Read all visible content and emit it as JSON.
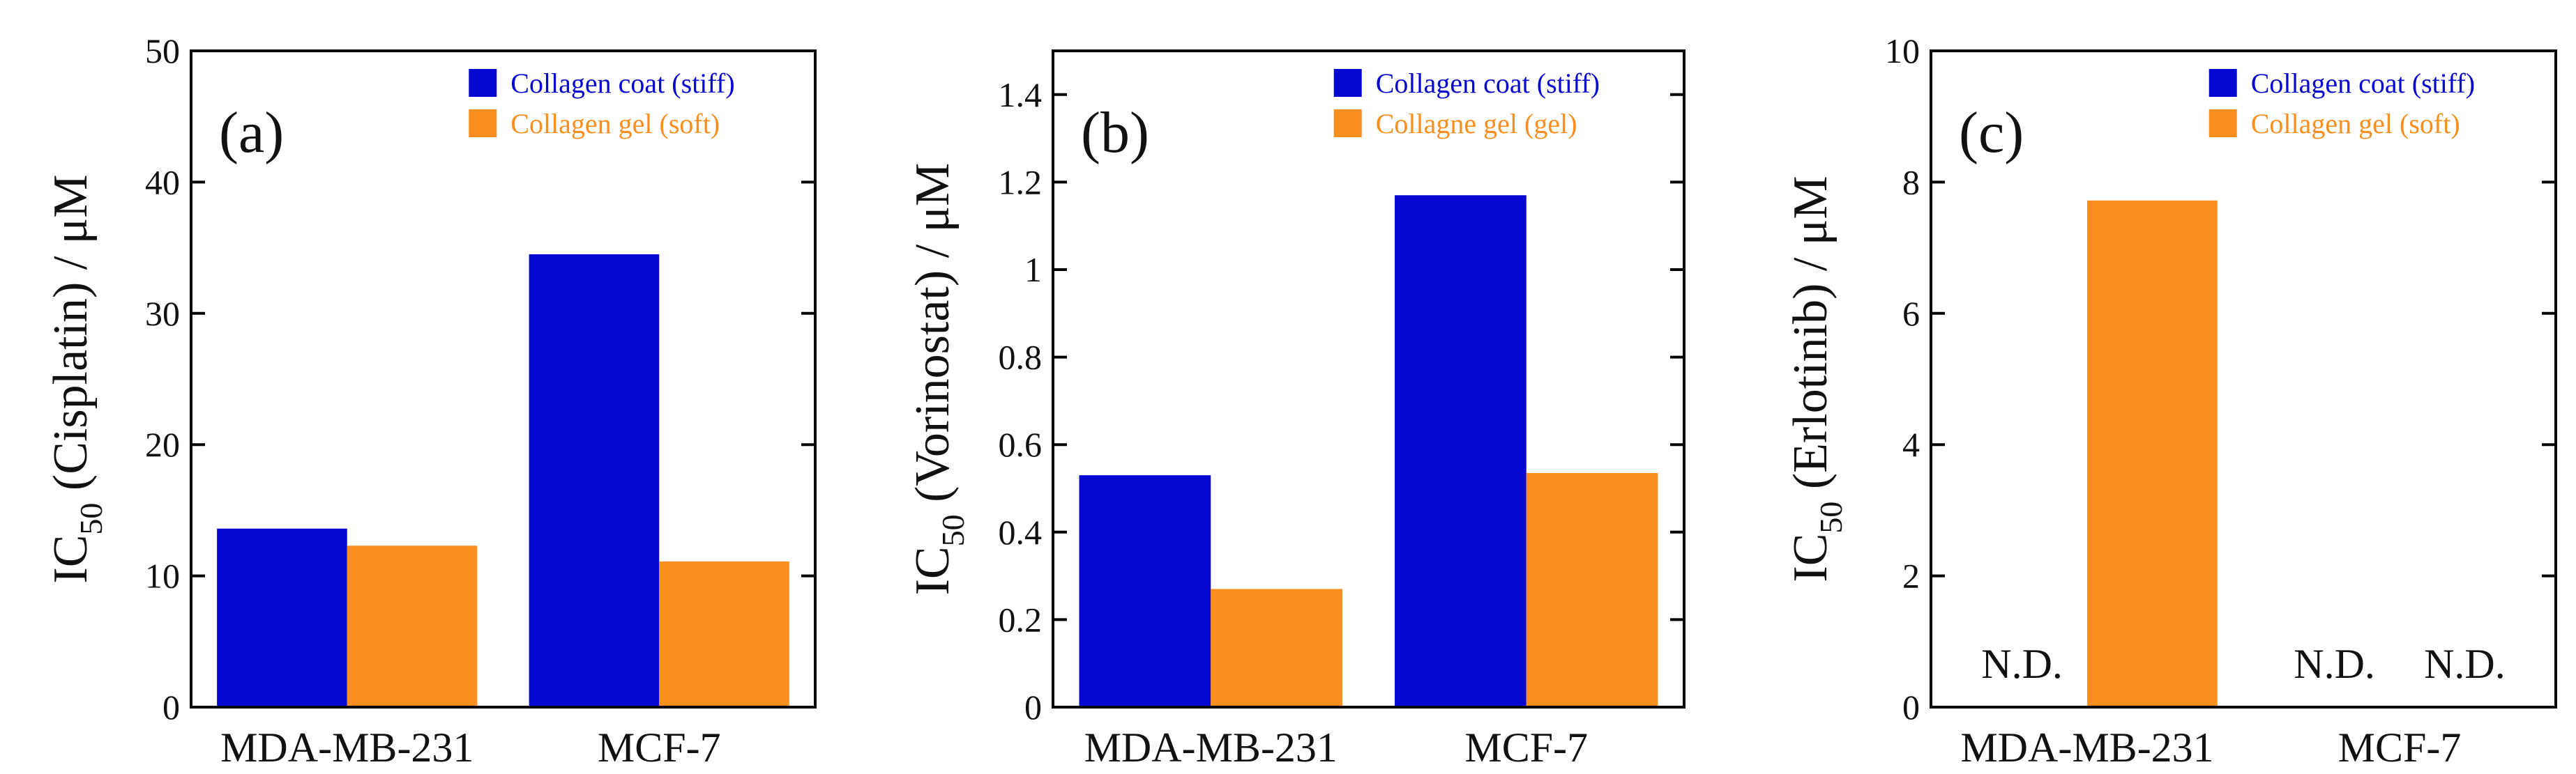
{
  "colors": {
    "stiff": "#0707D2",
    "soft": "#FA8E1E",
    "axis": "#000000"
  },
  "chart_data": [
    {
      "type": "bar",
      "panel_label": "(a)",
      "ylabel_parts": {
        "main": "IC",
        "sub": "50",
        "rest": " (Cisplatin) / μM"
      },
      "ylim": [
        0,
        50
      ],
      "yticks": [
        0,
        10,
        20,
        30,
        40,
        50
      ],
      "ytick_labels": [
        "0",
        "10",
        "20",
        "30",
        "40",
        "50"
      ],
      "categories": [
        "MDA-MB-231",
        "MCF-7"
      ],
      "series": [
        {
          "name": "Collagen coat (stiff)",
          "color": "#0707D2",
          "values": [
            13.6,
            34.5
          ],
          "labels": [
            null,
            null
          ]
        },
        {
          "name": "Collagen gel (soft)",
          "color": "#FA8E1E",
          "values": [
            12.3,
            11.1
          ],
          "labels": [
            null,
            null
          ]
        }
      ],
      "legend_position": "top-right"
    },
    {
      "type": "bar",
      "panel_label": "(b)",
      "ylabel_parts": {
        "main": "IC",
        "sub": "50",
        "rest": " (Vorinostat) / μM"
      },
      "ylim": [
        0,
        1.5
      ],
      "yticks": [
        0,
        0.2,
        0.4,
        0.6,
        0.8,
        1.0,
        1.2,
        1.4
      ],
      "ytick_labels": [
        "0",
        "0.2",
        "0.4",
        "0.6",
        "0.8",
        "1",
        "1.2",
        "1.4"
      ],
      "categories": [
        "MDA-MB-231",
        "MCF-7"
      ],
      "series": [
        {
          "name": "Collagen coat (stiff)",
          "color": "#0707D2",
          "values": [
            0.53,
            1.17
          ],
          "labels": [
            null,
            null
          ]
        },
        {
          "name": "Collagne gel (gel)",
          "color": "#FA8E1E",
          "values": [
            0.27,
            0.535
          ],
          "labels": [
            null,
            null
          ]
        }
      ],
      "legend_position": "top-right"
    },
    {
      "type": "bar",
      "panel_label": "(c)",
      "ylabel_parts": {
        "main": "IC",
        "sub": "50",
        "rest": " (Erlotinib) / μM"
      },
      "ylim": [
        0,
        10
      ],
      "yticks": [
        0,
        2,
        4,
        6,
        8,
        10
      ],
      "ytick_labels": [
        "0",
        "2",
        "4",
        "6",
        "8",
        "10"
      ],
      "categories": [
        "MDA-MB-231",
        "MCF-7"
      ],
      "series": [
        {
          "name": "Collagen coat (stiff)",
          "color": "#0707D2",
          "values": [
            null,
            null
          ],
          "labels": [
            "N.D.",
            "N.D."
          ]
        },
        {
          "name": "Collagen gel (soft)",
          "color": "#FA8E1E",
          "values": [
            7.72,
            null
          ],
          "labels": [
            null,
            "N.D."
          ]
        }
      ],
      "legend_position": "top-right"
    }
  ]
}
